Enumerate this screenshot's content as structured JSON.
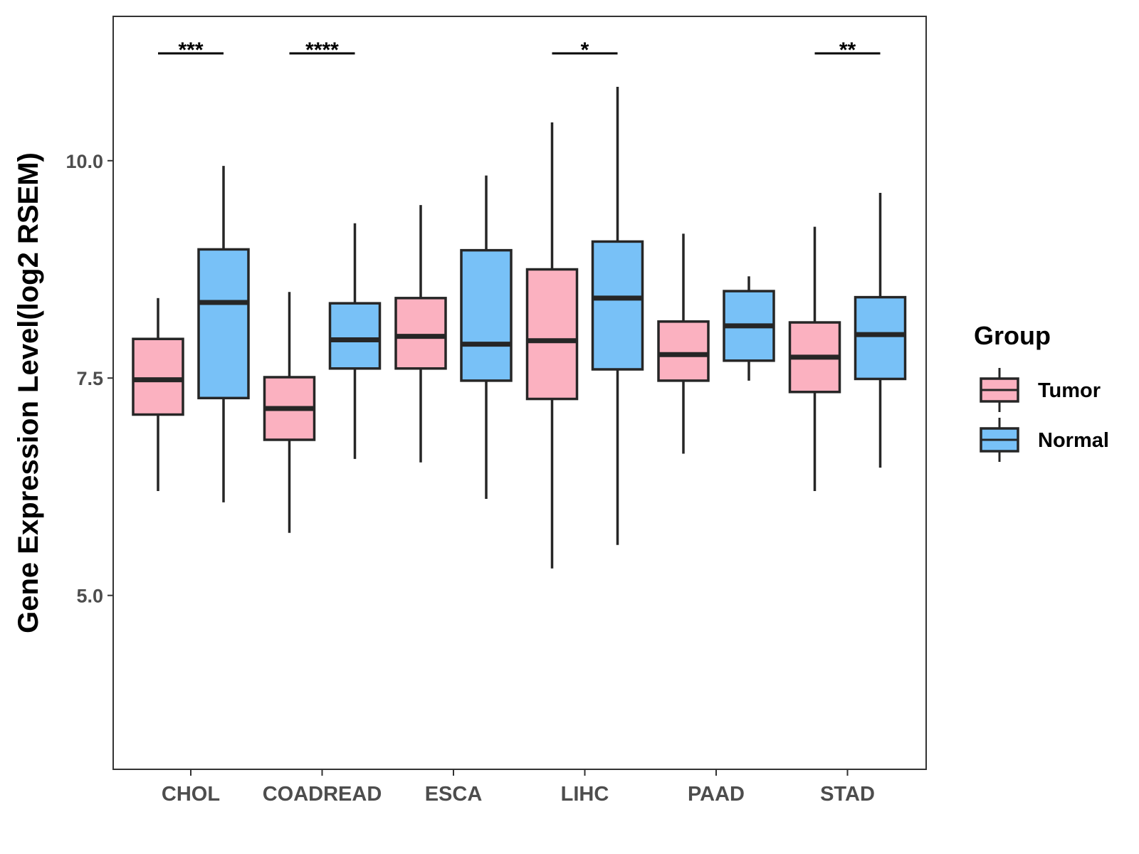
{
  "chart_data": {
    "type": "boxplot",
    "title": "",
    "xlabel": "",
    "ylabel": "Gene Expression Level(log2 RSEM)",
    "ylim": [
      3.0,
      11.66
    ],
    "y_ticks": [
      5.0,
      7.5,
      10.0
    ],
    "y_tick_labels": [
      "5.0",
      "7.5",
      "10.0"
    ],
    "grid": false,
    "legend": {
      "title": "Group",
      "position": "right",
      "entries": [
        {
          "name": "Tumor",
          "color": "#fbb1c0"
        },
        {
          "name": "Normal",
          "color": "#78c1f7"
        }
      ]
    },
    "categories": [
      "CHOL",
      "COADREAD",
      "ESCA",
      "LIHC",
      "PAAD",
      "STAD"
    ],
    "series": [
      {
        "name": "Tumor",
        "color": "#fbb1c0",
        "boxes": [
          {
            "min": 6.2,
            "q1": 7.08,
            "median": 7.48,
            "q3": 7.95,
            "max": 8.42
          },
          {
            "min": 5.72,
            "q1": 6.79,
            "median": 7.15,
            "q3": 7.51,
            "max": 8.49
          },
          {
            "min": 6.53,
            "q1": 7.61,
            "median": 7.98,
            "q3": 8.42,
            "max": 9.49
          },
          {
            "min": 5.31,
            "q1": 7.26,
            "median": 7.93,
            "q3": 8.75,
            "max": 10.44
          },
          {
            "min": 6.63,
            "q1": 7.47,
            "median": 7.77,
            "q3": 8.15,
            "max": 9.16
          },
          {
            "min": 6.2,
            "q1": 7.34,
            "median": 7.74,
            "q3": 8.14,
            "max": 9.24
          }
        ]
      },
      {
        "name": "Normal",
        "color": "#78c1f7",
        "boxes": [
          {
            "min": 6.07,
            "q1": 7.27,
            "median": 8.37,
            "q3": 8.98,
            "max": 9.94
          },
          {
            "min": 6.57,
            "q1": 7.61,
            "median": 7.94,
            "q3": 8.36,
            "max": 9.28
          },
          {
            "min": 6.11,
            "q1": 7.47,
            "median": 7.89,
            "q3": 8.97,
            "max": 9.83
          },
          {
            "min": 5.58,
            "q1": 7.6,
            "median": 8.42,
            "q3": 9.07,
            "max": 10.85
          },
          {
            "min": 7.47,
            "q1": 7.7,
            "median": 8.1,
            "q3": 8.5,
            "max": 8.67
          },
          {
            "min": 6.47,
            "q1": 7.49,
            "median": 8.0,
            "q3": 8.43,
            "max": 9.63
          }
        ]
      }
    ],
    "annotations": [
      {
        "category": "CHOL",
        "label": "***"
      },
      {
        "category": "COADREAD",
        "label": "****"
      },
      {
        "category": "ESCA",
        "label": ""
      },
      {
        "category": "LIHC",
        "label": "*"
      },
      {
        "category": "PAAD",
        "label": ""
      },
      {
        "category": "STAD",
        "label": "**"
      }
    ]
  }
}
